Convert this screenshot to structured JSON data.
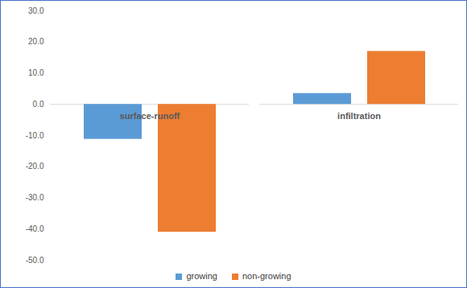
{
  "chart_data": {
    "type": "bar",
    "categories": [
      "surface-runoff",
      "infiltration"
    ],
    "series": [
      {
        "name": "growing",
        "color": "#5b9bd5",
        "values": [
          -11.2,
          3.5
        ]
      },
      {
        "name": "non-growing",
        "color": "#ed7d31",
        "values": [
          -41.0,
          17.0
        ]
      }
    ],
    "ylim": [
      -50,
      30
    ],
    "yticks": [
      {
        "value": -50,
        "label": "-50.0"
      },
      {
        "value": -40,
        "label": "-40.0"
      },
      {
        "value": -30,
        "label": "-30.0"
      },
      {
        "value": -20,
        "label": "-20.0"
      },
      {
        "value": -10,
        "label": "-10.0"
      },
      {
        "value": 0,
        "label": "0.0"
      },
      {
        "value": 10,
        "label": "10.0"
      },
      {
        "value": 20,
        "label": "20.0"
      },
      {
        "value": 30,
        "label": "30.0"
      }
    ],
    "grid": false,
    "legend": "bottom"
  }
}
